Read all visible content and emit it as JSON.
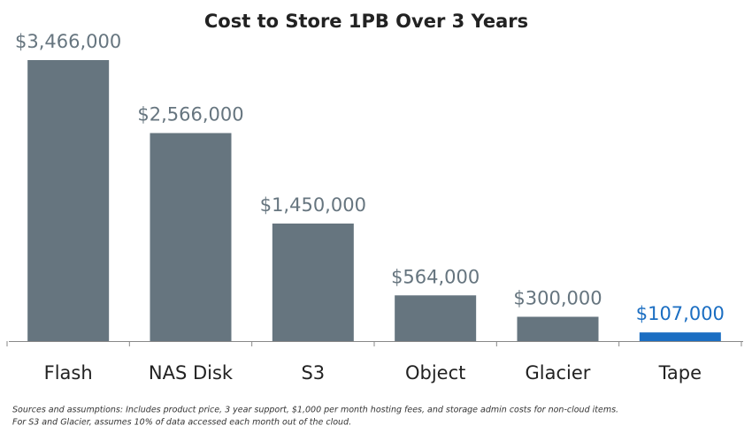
{
  "chart_data": {
    "type": "bar",
    "title": "Cost to Store 1PB Over 3 Years",
    "categories": [
      "Flash",
      "NAS Disk",
      "S3",
      "Object",
      "Glacier",
      "Tape"
    ],
    "values": [
      3466000,
      2566000,
      1450000,
      564000,
      300000,
      107000
    ],
    "value_labels": [
      "$3,466,000",
      "$2,566,000",
      "$1,450,000",
      "$564,000",
      "$300,000",
      "$107,000"
    ],
    "colors": [
      "#66757f",
      "#66757f",
      "#66757f",
      "#66757f",
      "#66757f",
      "#1b6ec2"
    ],
    "footnotes": [
      "Sources and assumptions:   Includes product price, 3 year support, $1,000 per month hosting fees, and storage admin costs for non-cloud items.",
      "For S3 and Glacier, assumes 10% of data accessed each month out of the cloud."
    ]
  }
}
